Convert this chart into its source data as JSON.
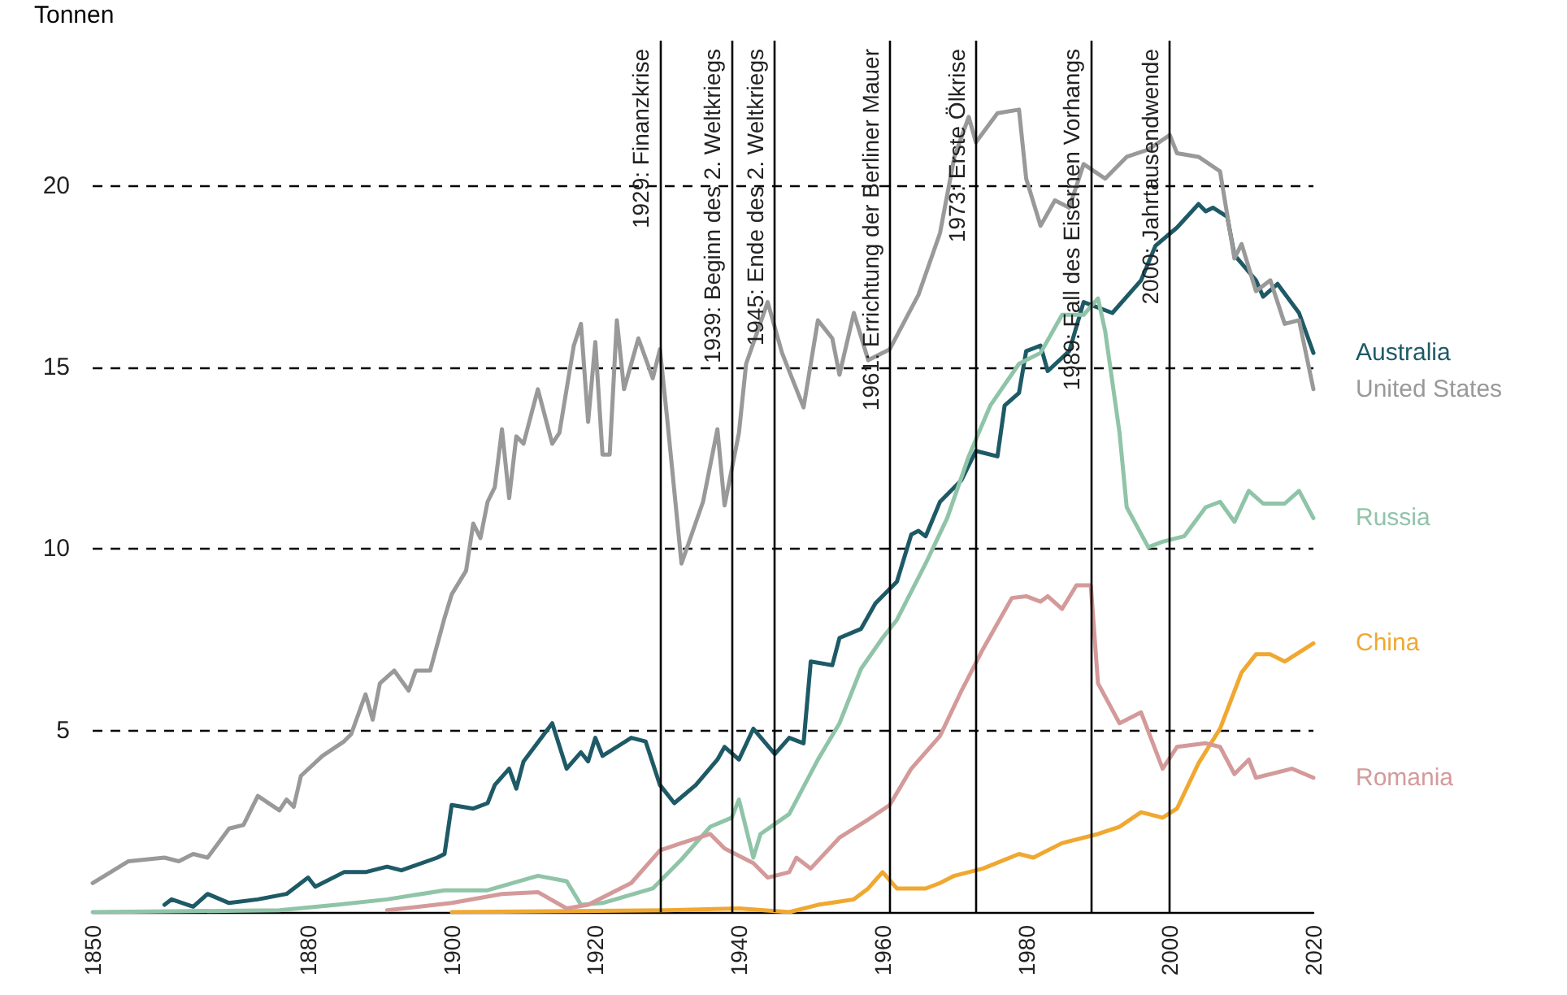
{
  "chart_data": {
    "type": "line",
    "ylabel": "Tonnen",
    "xlim": [
      1850,
      2020
    ],
    "xticks": [
      1850,
      1880,
      1900,
      1920,
      1940,
      1960,
      1980,
      2000,
      2020
    ],
    "ylim": [
      0,
      24
    ],
    "yticks": [
      5,
      10,
      15,
      20
    ],
    "grid": "y",
    "legend": "right",
    "line_style": "solid",
    "marker": "none",
    "series": [
      {
        "name": "Australia",
        "color": "#1e5a66",
        "x": [
          1860,
          1861,
          1864,
          1866,
          1869,
          1873,
          1877,
          1880,
          1881,
          1885,
          1888,
          1891,
          1893,
          1898,
          1899,
          1900,
          1903,
          1905,
          1906,
          1908,
          1909,
          1910,
          1914,
          1916,
          1918,
          1919,
          1920,
          1921,
          1925,
          1927,
          1929,
          1931,
          1934,
          1937,
          1938,
          1940,
          1942,
          1945,
          1947,
          1949,
          1950,
          1953,
          1954,
          1957,
          1959,
          1962,
          1964,
          1965,
          1966,
          1968,
          1971,
          1973,
          1976,
          1977,
          1979,
          1980,
          1982,
          1983,
          1986,
          1988,
          1992,
          1996,
          1998,
          2001,
          2004,
          2005,
          2006,
          2008,
          2009,
          2012,
          2013,
          2015,
          2018,
          2020
        ],
        "values": [
          0.2,
          0.35,
          0.15,
          0.5,
          0.25,
          0.35,
          0.5,
          0.95,
          0.7,
          1.1,
          1.1,
          1.25,
          1.15,
          1.5,
          1.6,
          2.95,
          2.85,
          3.0,
          3.5,
          3.95,
          3.4,
          4.15,
          5.2,
          3.95,
          4.4,
          4.15,
          4.8,
          4.3,
          4.8,
          4.7,
          3.5,
          3.0,
          3.5,
          4.2,
          4.55,
          4.2,
          5.05,
          4.35,
          4.8,
          4.65,
          6.9,
          6.8,
          7.55,
          7.8,
          8.5,
          9.1,
          10.4,
          10.5,
          10.35,
          11.3,
          11.9,
          12.7,
          12.55,
          13.95,
          14.3,
          15.45,
          15.6,
          14.9,
          15.45,
          16.8,
          16.5,
          17.4,
          18.35,
          18.85,
          19.5,
          19.3,
          19.4,
          19.15,
          18.1,
          17.4,
          16.95,
          17.3,
          16.5,
          15.4
        ]
      },
      {
        "name": "United States",
        "color": "#999999",
        "x": [
          1850,
          1855,
          1860,
          1862,
          1864,
          1866,
          1869,
          1871,
          1873,
          1876,
          1877,
          1878,
          1879,
          1882,
          1885,
          1886,
          1888,
          1889,
          1890,
          1892,
          1894,
          1895,
          1897,
          1899,
          1900,
          1902,
          1903,
          1904,
          1905,
          1906,
          1907,
          1908,
          1909,
          1910,
          1912,
          1914,
          1915,
          1917,
          1918,
          1919,
          1920,
          1921,
          1922,
          1923,
          1924,
          1926,
          1928,
          1929,
          1930,
          1932,
          1935,
          1937,
          1938,
          1940,
          1941,
          1944,
          1946,
          1949,
          1951,
          1953,
          1954,
          1956,
          1958,
          1961,
          1965,
          1968,
          1970,
          1972,
          1973,
          1976,
          1979,
          1980,
          1982,
          1984,
          1986,
          1988,
          1991,
          1994,
          1997,
          2000,
          2001,
          2004,
          2007,
          2009,
          2010,
          2012,
          2014,
          2016,
          2018,
          2020
        ],
        "values": [
          0.8,
          1.4,
          1.5,
          1.4,
          1.6,
          1.5,
          2.3,
          2.4,
          3.2,
          2.8,
          3.1,
          2.9,
          3.75,
          4.3,
          4.7,
          4.9,
          6.0,
          5.3,
          6.3,
          6.65,
          6.1,
          6.65,
          6.65,
          8.1,
          8.75,
          9.4,
          10.7,
          10.3,
          11.3,
          11.7,
          13.3,
          11.4,
          13.1,
          12.9,
          14.4,
          12.9,
          13.2,
          15.6,
          16.2,
          13.5,
          15.7,
          12.6,
          12.6,
          16.3,
          14.4,
          15.8,
          14.7,
          15.5,
          13.6,
          9.6,
          11.3,
          13.3,
          11.2,
          13.2,
          15.1,
          16.8,
          15.4,
          13.9,
          16.3,
          15.8,
          14.8,
          16.5,
          15.2,
          15.5,
          17.0,
          18.7,
          20.8,
          21.9,
          21.2,
          22.0,
          22.1,
          20.2,
          18.9,
          19.6,
          19.4,
          20.6,
          20.2,
          20.8,
          21.0,
          21.4,
          20.9,
          20.8,
          20.4,
          18.0,
          18.4,
          17.1,
          17.4,
          16.2,
          16.3,
          14.4
        ]
      },
      {
        "name": "Russia",
        "color": "#90c4a8",
        "x": [
          1850,
          1876,
          1884,
          1891,
          1899,
          1905,
          1912,
          1916,
          1918,
          1921,
          1928,
          1932,
          1936,
          1939,
          1940,
          1942,
          1943,
          1947,
          1951,
          1954,
          1957,
          1960,
          1962,
          1966,
          1969,
          1972,
          1975,
          1979,
          1982,
          1985,
          1988,
          1990,
          1991,
          1993,
          1994,
          1997,
          1999,
          2002,
          2005,
          2007,
          2009,
          2011,
          2013,
          2016,
          2018,
          2020
        ],
        "values": [
          0,
          0.05,
          0.2,
          0.35,
          0.6,
          0.6,
          1.0,
          0.85,
          0.2,
          0.25,
          0.65,
          1.45,
          2.35,
          2.6,
          3.1,
          1.5,
          2.15,
          2.7,
          4.2,
          5.2,
          6.7,
          7.55,
          8.05,
          9.6,
          10.85,
          12.55,
          13.95,
          15.1,
          15.4,
          16.45,
          16.45,
          16.9,
          16.0,
          13.2,
          11.15,
          10.05,
          10.2,
          10.35,
          11.15,
          11.3,
          10.75,
          11.6,
          11.25,
          11.25,
          11.6,
          10.85
        ]
      },
      {
        "name": "China",
        "color": "#f0a830",
        "x": [
          1900,
          1930,
          1940,
          1947,
          1951,
          1956,
          1958,
          1960,
          1962,
          1966,
          1968,
          1970,
          1974,
          1979,
          1981,
          1985,
          1990,
          1993,
          1996,
          1999,
          2001,
          2004,
          2007,
          2010,
          2012,
          2014,
          2016,
          2020
        ],
        "values": [
          0,
          0.05,
          0.1,
          0,
          0.2,
          0.35,
          0.65,
          1.1,
          0.65,
          0.65,
          0.8,
          1.0,
          1.2,
          1.6,
          1.5,
          1.9,
          2.15,
          2.35,
          2.75,
          2.6,
          2.85,
          4.1,
          5.05,
          6.6,
          7.1,
          7.1,
          6.9,
          7.4
        ]
      },
      {
        "name": "Romania",
        "color": "#d49a9a",
        "x": [
          1891,
          1900,
          1907,
          1912,
          1916,
          1919,
          1925,
          1929,
          1932,
          1936,
          1938,
          1942,
          1944,
          1947,
          1948,
          1950,
          1954,
          1958,
          1961,
          1964,
          1968,
          1971,
          1974,
          1978,
          1980,
          1982,
          1983,
          1985,
          1987,
          1989,
          1990,
          1993,
          1996,
          1999,
          2001,
          2005,
          2007,
          2009,
          2011,
          2012,
          2017,
          2020
        ],
        "values": [
          0.05,
          0.25,
          0.5,
          0.55,
          0.1,
          0.2,
          0.8,
          1.7,
          1.9,
          2.15,
          1.75,
          1.35,
          0.95,
          1.1,
          1.5,
          1.2,
          2.05,
          2.55,
          2.95,
          3.95,
          4.85,
          6.1,
          7.25,
          8.65,
          8.7,
          8.55,
          8.7,
          8.35,
          9.0,
          9.0,
          6.3,
          5.2,
          5.5,
          3.95,
          4.55,
          4.65,
          4.55,
          3.8,
          4.2,
          3.7,
          3.95,
          3.7
        ]
      }
    ],
    "ref_lines": [
      {
        "axis": "x",
        "value": 1929,
        "label": "1929: Finanzkrise",
        "color": "#000000"
      },
      {
        "axis": "x",
        "value": 1939,
        "label": "1939: Beginn des 2. Weltkriegs",
        "color": "#000000"
      },
      {
        "axis": "x",
        "value": 1945,
        "label": "1945: Ende des 2. Weltkriegs",
        "color": "#000000"
      },
      {
        "axis": "x",
        "value": 1961,
        "label": "1961: Errichtung der Berliner Mauer",
        "color": "#000000"
      },
      {
        "axis": "x",
        "value": 1973,
        "label": "1973: Erste Ölkrise",
        "color": "#000000"
      },
      {
        "axis": "x",
        "value": 1989,
        "label": "1989: Fall des Eisernen Vorhangs",
        "color": "#000000"
      },
      {
        "axis": "x",
        "value": 2000,
        "label": "2000: Jahrtausendwende",
        "color": "#000000"
      }
    ]
  }
}
